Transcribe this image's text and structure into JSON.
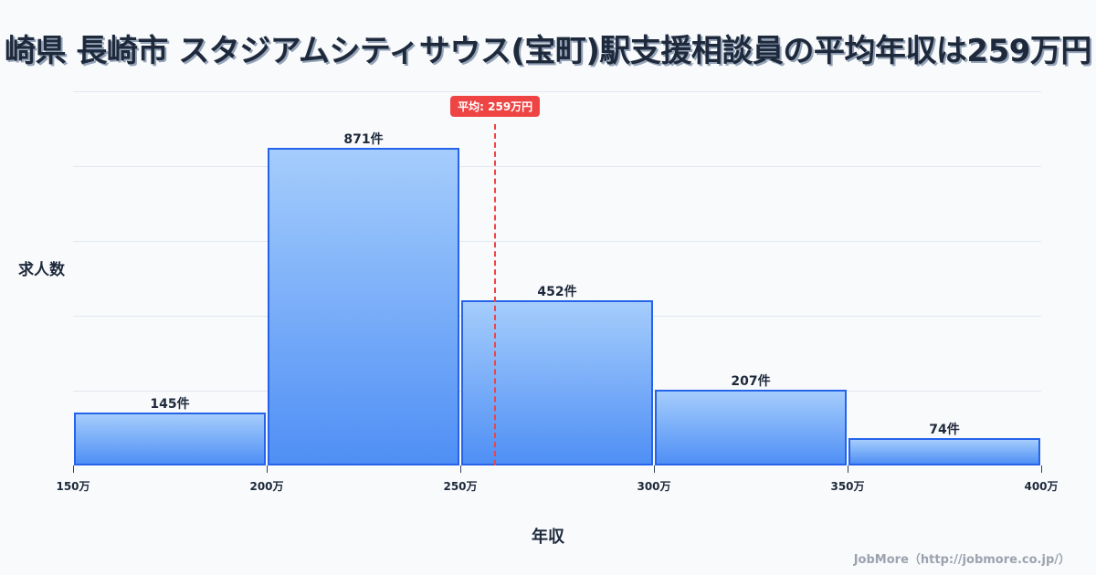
{
  "title": "崎県 長崎市 スタジアムシティサウス(宝町)駅支援相談員の平均年収は259万円",
  "axis": {
    "ylabel": "求人数",
    "xlabel": "年収"
  },
  "mean": {
    "label": "平均: 259万円",
    "value": 259,
    "color": "#ef4444"
  },
  "credit": "JobMore（http://jobmore.co.jp/）",
  "colors": {
    "bar_fill_top": "#a5cdfc",
    "bar_fill_bottom": "#4f8ff5",
    "bar_border": "#2563eb",
    "background": "#f8fafc",
    "grid": "#e2e8f0"
  },
  "chart_data": {
    "type": "bar",
    "title": "崎県 長崎市 スタジアムシティサウス(宝町)駅支援相談員の平均年収は259万円",
    "xlabel": "年収",
    "ylabel": "求人数",
    "bins": [
      {
        "from": 150,
        "to": 200,
        "count": 145,
        "label": "145件"
      },
      {
        "from": 200,
        "to": 250,
        "count": 871,
        "label": "871件"
      },
      {
        "from": 250,
        "to": 300,
        "count": 452,
        "label": "452件"
      },
      {
        "from": 300,
        "to": 350,
        "count": 207,
        "label": "207件"
      },
      {
        "from": 350,
        "to": 400,
        "count": 74,
        "label": "74件"
      }
    ],
    "categories": [
      "150万-200万",
      "200万-250万",
      "250万-300万",
      "300万-350万",
      "350万-400万"
    ],
    "values": [
      145,
      871,
      452,
      207,
      74
    ],
    "x_ticks": [
      "150万",
      "200万",
      "250万",
      "300万",
      "350万",
      "400万"
    ],
    "xlim": [
      150,
      400
    ],
    "ylim": [
      0,
      1025
    ],
    "grid": true,
    "annotations": [
      {
        "type": "vline",
        "x": 259,
        "label": "平均: 259万円"
      }
    ]
  }
}
